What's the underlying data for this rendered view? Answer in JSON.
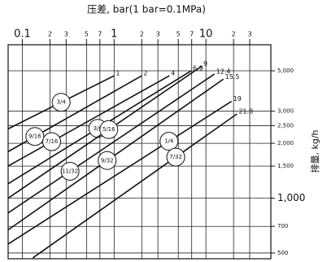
{
  "chart_data": {
    "type": "line",
    "title": "压差, bar(1 bar=0.1MPa)",
    "y_label": "排量, kg/h",
    "xscale": "log",
    "yscale": "log",
    "grid": true,
    "color": "#111111",
    "xlim": [
      0.07,
      51
    ],
    "ylim": [
      465,
      6950
    ],
    "xticks": [
      0.1,
      {
        "value": 0.2,
        "label": "2"
      },
      {
        "value": 0.3,
        "label": "3"
      },
      {
        "value": 0.5,
        "label": "5"
      },
      {
        "value": 0.7,
        "label": "7"
      },
      1,
      {
        "value": 2,
        "label": "2"
      },
      {
        "value": 3,
        "label": "3"
      },
      {
        "value": 5,
        "label": "5"
      },
      {
        "value": 7,
        "label": "7"
      },
      10,
      {
        "value": 20,
        "label": "2"
      },
      {
        "value": 30,
        "label": "3"
      }
    ],
    "yticks": [
      500,
      700,
      {
        "value": 1000,
        "label": "1,000"
      },
      {
        "value": 1500,
        "label": "1,500"
      },
      {
        "value": 2000,
        "label": "2,000"
      },
      {
        "value": 2500,
        "label": "2,500"
      },
      {
        "value": 3000,
        "label": "3,000"
      },
      {
        "value": 5000,
        "label": "5,000"
      }
    ],
    "series": [
      {
        "name": "3/4",
        "x": [
          0.07,
          1
        ],
        "values": [
          2400,
          4700
        ]
      },
      {
        "name": "9/16",
        "x": [
          0.07,
          2
        ],
        "values": [
          1800,
          4700
        ]
      },
      {
        "name": "7/16",
        "x": [
          0.07,
          4
        ],
        "values": [
          1500,
          4700
        ]
      },
      {
        "name": "3/8",
        "x": [
          0.07,
          6.9
        ],
        "values": [
          1200,
          5000
        ]
      },
      {
        "name": "5/16",
        "x": [
          0.07,
          9
        ],
        "values": [
          1000,
          5300
        ]
      },
      {
        "name": "11/32",
        "x": [
          0.07,
          12.4
        ],
        "values": [
          830,
          4800
        ]
      },
      {
        "name": "9/32",
        "x": [
          0.07,
          15.5
        ],
        "values": [
          670,
          4500
        ]
      },
      {
        "name": "1/4",
        "x": [
          0.07,
          19
        ],
        "values": [
          560,
          3400
        ]
      },
      {
        "name": "7/32",
        "x": [
          0.13,
          21.8
        ],
        "values": [
          470,
          2900
        ]
      }
    ]
  }
}
